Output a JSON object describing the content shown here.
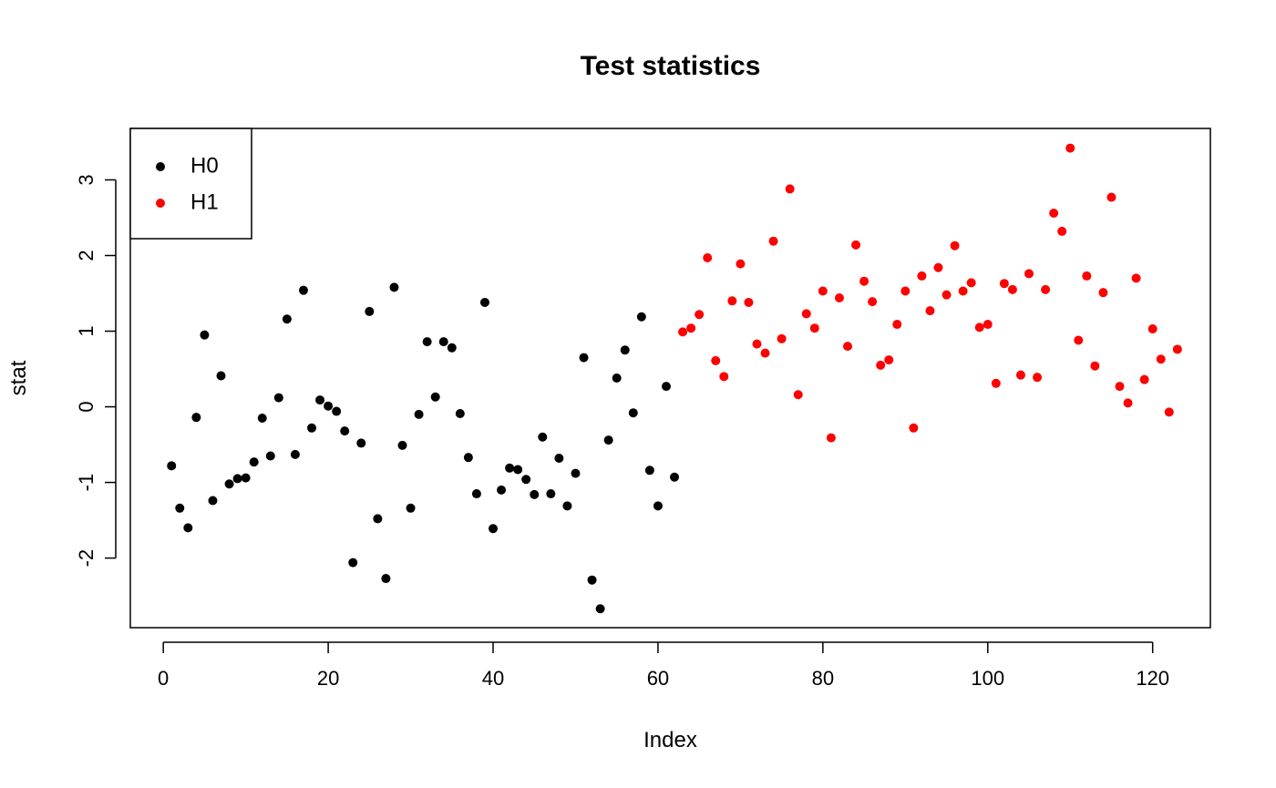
{
  "chart_data": {
    "type": "scatter",
    "title": "Test statistics",
    "xlabel": "Index",
    "ylabel": "stat",
    "xlim": [
      -4,
      127
    ],
    "ylim": [
      -2.92,
      3.68
    ],
    "x_ticks": [
      0,
      20,
      40,
      60,
      80,
      100,
      120
    ],
    "y_ticks": [
      -2,
      -1,
      0,
      1,
      2,
      3
    ],
    "grid": false,
    "legend_position": "top-left",
    "series": [
      {
        "name": "H0",
        "color": "#000000",
        "x": [
          1,
          2,
          3,
          4,
          5,
          6,
          7,
          8,
          9,
          10,
          11,
          12,
          13,
          14,
          15,
          16,
          17,
          18,
          19,
          20,
          21,
          22,
          23,
          24,
          25,
          26,
          27,
          28,
          29,
          30,
          31,
          32,
          33,
          34,
          35,
          36,
          37,
          38,
          39,
          40,
          41,
          42,
          43,
          44,
          45,
          46,
          47,
          48,
          49,
          50,
          51,
          52,
          53,
          54,
          55,
          56,
          57,
          58,
          59,
          60,
          61,
          62
        ],
        "y": [
          -0.78,
          -1.34,
          -1.6,
          -0.14,
          0.95,
          -1.24,
          0.41,
          -1.02,
          -0.95,
          -0.94,
          -0.73,
          -0.15,
          -0.65,
          0.12,
          1.16,
          -0.63,
          1.54,
          -0.28,
          0.09,
          0.01,
          -0.06,
          -0.32,
          -2.06,
          -0.48,
          1.26,
          -1.48,
          -2.27,
          1.58,
          -0.51,
          -1.34,
          -0.1,
          0.86,
          0.13,
          0.86,
          0.78,
          -0.09,
          -0.67,
          -1.15,
          1.38,
          -1.61,
          -1.1,
          -0.81,
          -0.83,
          -0.96,
          -1.16,
          -0.4,
          -1.15,
          -0.68,
          -1.31,
          -0.88,
          0.65,
          -2.29,
          -2.67,
          -0.44,
          0.38,
          0.75,
          -0.08,
          1.19,
          -0.84,
          -1.31,
          0.27,
          -0.93
        ]
      },
      {
        "name": "H1",
        "color": "#ff0000",
        "x": [
          63,
          64,
          65,
          66,
          67,
          68,
          69,
          70,
          71,
          72,
          73,
          74,
          75,
          76,
          77,
          78,
          79,
          80,
          81,
          82,
          83,
          84,
          85,
          86,
          87,
          88,
          89,
          90,
          91,
          92,
          93,
          94,
          95,
          96,
          97,
          98,
          99,
          100,
          101,
          102,
          103,
          104,
          105,
          106,
          107,
          108,
          109,
          110,
          111,
          112,
          113,
          114,
          115,
          116,
          117,
          118,
          119,
          120,
          121,
          122,
          123
        ],
        "y": [
          0.99,
          1.04,
          1.22,
          1.97,
          0.61,
          0.4,
          1.4,
          1.89,
          1.38,
          0.83,
          0.71,
          2.19,
          0.9,
          2.88,
          0.16,
          1.23,
          1.04,
          1.53,
          -0.41,
          1.44,
          0.8,
          2.14,
          1.66,
          1.39,
          0.55,
          0.62,
          1.09,
          1.53,
          -0.28,
          1.73,
          1.27,
          1.84,
          1.48,
          2.13,
          1.53,
          1.64,
          1.05,
          1.09,
          0.31,
          1.63,
          1.55,
          0.42,
          1.76,
          0.39,
          1.55,
          2.56,
          2.32,
          3.42,
          0.88,
          1.73,
          0.54,
          1.51,
          2.77,
          0.27,
          0.05,
          1.7,
          0.36,
          1.03,
          0.63,
          -0.07,
          0.76
        ]
      }
    ]
  }
}
